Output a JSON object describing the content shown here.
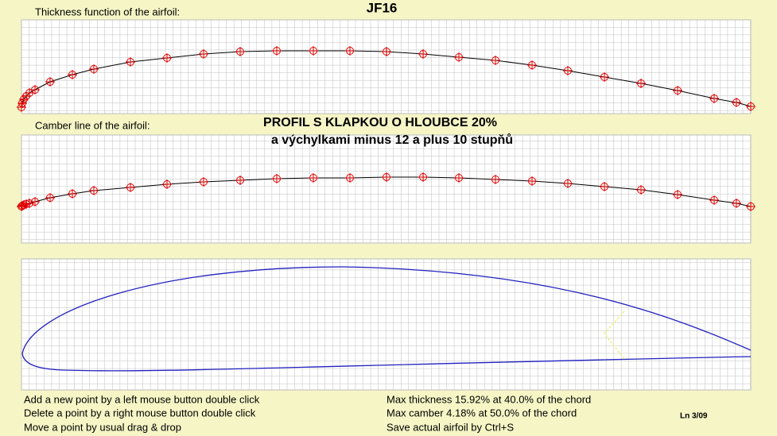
{
  "header": {
    "title": "JF16"
  },
  "panels": {
    "thickness_label": "Thickness function of the airfoil:",
    "camber_label": "Camber line of the airfoil:"
  },
  "annotation": {
    "line1": "PROFIL S KLAPKOU O HLOUBCE  20%",
    "line2": "a výchylkami minus 12 a plus 10 stupňů"
  },
  "help": [
    "Add a new point by a left mouse button double click",
    "Delete a point by a right mouse button double click",
    "Move a point by usual drag & drop"
  ],
  "stats": [
    "Max thickness 15.92% at 40.0% of the chord",
    "Max camber 4.18% at 50.0% of the chord",
    "Save actual airfoil by Ctrl+S"
  ],
  "status": "Ln 3/09"
}
